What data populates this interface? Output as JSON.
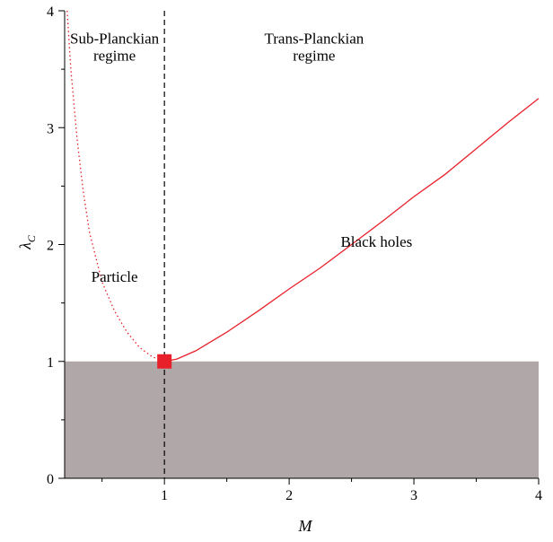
{
  "chart_data": {
    "type": "line",
    "title": "",
    "xlabel": "M",
    "ylabel": {
      "main": "λ",
      "sub": "C"
    },
    "xlim": [
      0.2,
      4
    ],
    "ylim": [
      0,
      4
    ],
    "x_ticks": [
      1,
      2,
      3,
      4
    ],
    "y_ticks": [
      0,
      1,
      2,
      3,
      4
    ],
    "grid": false,
    "series": [
      {
        "style": "dotted",
        "color": "#e8202a",
        "points": [
          [
            0.22,
            4.0
          ],
          [
            0.25,
            3.5
          ],
          [
            0.3,
            2.9
          ],
          [
            0.35,
            2.45
          ],
          [
            0.4,
            2.1
          ],
          [
            0.5,
            1.68
          ],
          [
            0.6,
            1.43
          ],
          [
            0.7,
            1.25
          ],
          [
            0.8,
            1.12
          ],
          [
            0.9,
            1.04
          ],
          [
            1.0,
            1.0
          ]
        ]
      },
      {
        "style": "solid",
        "color": "#e8202a",
        "points": [
          [
            1.0,
            1.0
          ],
          [
            1.1,
            1.02
          ],
          [
            1.25,
            1.09
          ],
          [
            1.5,
            1.25
          ],
          [
            1.75,
            1.43
          ],
          [
            2.0,
            1.62
          ],
          [
            2.25,
            1.8
          ],
          [
            2.5,
            2.0
          ],
          [
            2.75,
            2.2
          ],
          [
            3.0,
            2.41
          ],
          [
            3.25,
            2.6
          ],
          [
            3.5,
            2.82
          ],
          [
            3.75,
            3.04
          ],
          [
            4.0,
            3.25
          ]
        ]
      }
    ],
    "vertical_line": {
      "x": 1,
      "style": "dashed",
      "color": "#000000"
    },
    "shaded_region": {
      "x": [
        0.2,
        4
      ],
      "y": [
        0,
        1
      ],
      "color": "#b0a8a8"
    },
    "marker": {
      "x": 1,
      "y": 1,
      "shape": "square",
      "color": "#e8202a"
    },
    "annotations": [
      {
        "id": "sub-planckian",
        "lines": [
          "Sub-Planckian",
          "regime"
        ],
        "x": 0.6,
        "y": 3.72
      },
      {
        "id": "trans-planckian",
        "lines": [
          "Trans-Planckian",
          "regime"
        ],
        "x": 2.2,
        "y": 3.72
      },
      {
        "id": "particle",
        "lines": [
          "Particle"
        ],
        "x": 0.6,
        "y": 1.68
      },
      {
        "id": "black-holes",
        "lines": [
          "Black holes"
        ],
        "x": 2.7,
        "y": 1.98
      }
    ]
  }
}
